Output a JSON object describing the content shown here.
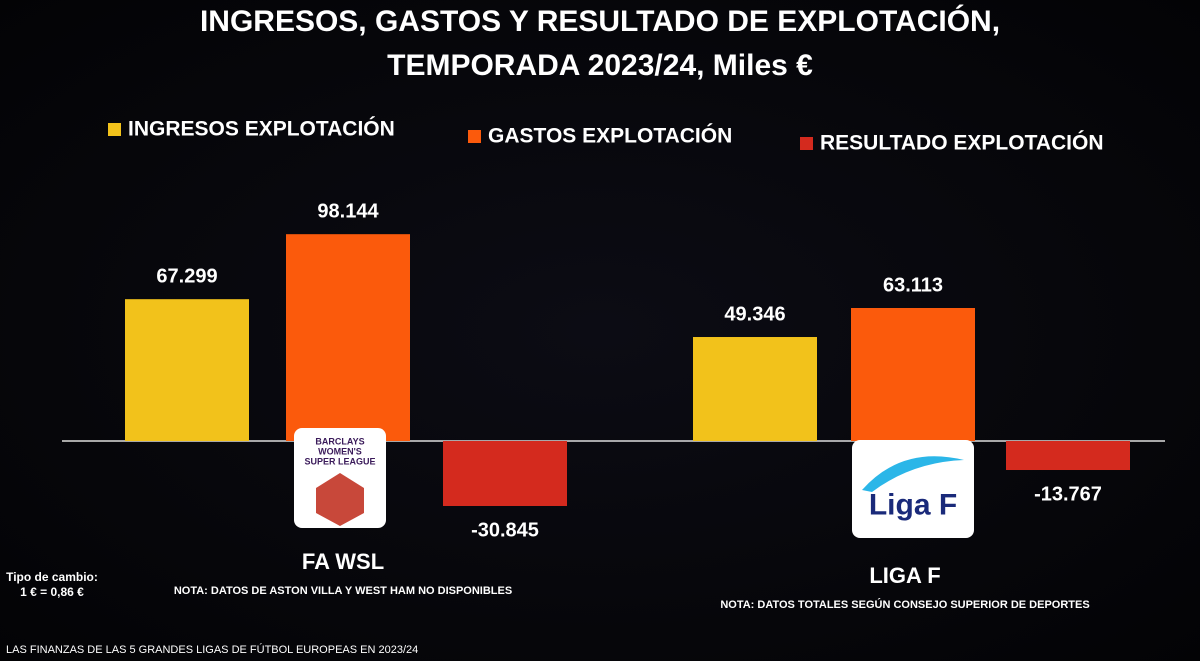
{
  "chart_data": {
    "type": "bar",
    "title": "INGRESOS, GASTOS Y RESULTADO DE EXPLOTACIÓN, TEMPORADA 2023/24, Miles €",
    "categories": [
      "FA WSL",
      "LIGA F"
    ],
    "notes": [
      "NOTA: DATOS DE ASTON VILLA Y WEST HAM NO DISPONIBLES",
      "NOTA: DATOS TOTALES SEGÚN CONSEJO SUPERIOR DE DEPORTES"
    ],
    "logos": [
      [
        "BARCLAYS",
        "WOMEN'S",
        "SUPER LEAGUE"
      ],
      [
        "Liga F"
      ]
    ],
    "series": [
      {
        "name": "INGRESOS EXPLOTACIÓN",
        "color": "#f2c21b",
        "values": [
          67299,
          49346
        ],
        "value_labels": [
          "67.299",
          "49.346"
        ]
      },
      {
        "name": "GASTOS EXPLOTACIÓN",
        "color": "#fb5a0c",
        "values": [
          98144,
          63113
        ],
        "value_labels": [
          "98.144",
          "63.113"
        ]
      },
      {
        "name": "RESULTADO EXPLOTACIÓN",
        "color": "#d42a1e",
        "values": [
          -30845,
          -13767
        ],
        "value_labels": [
          "-30.845",
          "-13.767"
        ]
      }
    ],
    "legend": "top",
    "exchange_rate": [
      "Tipo de cambio:",
      "1 € = 0,86 €"
    ],
    "footer": "LAS FINANZAS DE LAS 5 GRANDES LIGAS DE FÚTBOL EUROPEAS EN 2023/24"
  }
}
